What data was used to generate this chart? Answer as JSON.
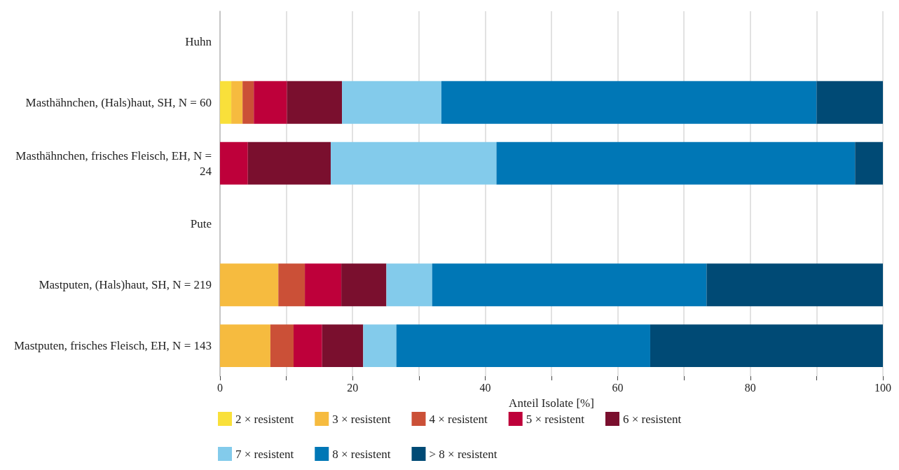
{
  "chart_data": {
    "type": "bar",
    "orientation": "horizontal",
    "stacked": true,
    "xlabel": "Anteil Isolate [%]",
    "categories": [
      "Huhn",
      "Masthähnchen, (Hals)haut, SH, N = 60",
      "Masthähnchen, frisches Fleisch, EH, N = 24",
      "Pute",
      "Mastputen, (Hals)haut, SH, N = 219",
      "Mastputen, frisches Fleisch, EH, N = 143"
    ],
    "series": [
      {
        "name": "2 × resistent",
        "color": "#f9e03a",
        "values": [
          null,
          1.7,
          null,
          null,
          null,
          null
        ]
      },
      {
        "name": "3 × resistent",
        "color": "#f6bb3f",
        "values": [
          null,
          1.7,
          null,
          null,
          8.8,
          7.6
        ]
      },
      {
        "name": "4 × resistent",
        "color": "#cb5037",
        "values": [
          null,
          1.7,
          null,
          null,
          4.0,
          3.5
        ]
      },
      {
        "name": "5 × resistent",
        "color": "#be003a",
        "values": [
          null,
          5.0,
          4.2,
          null,
          5.5,
          4.3
        ]
      },
      {
        "name": "6 × resistent",
        "color": "#7a0f2e",
        "values": [
          null,
          8.3,
          12.5,
          null,
          6.8,
          6.2
        ]
      },
      {
        "name": "7 × resistent",
        "color": "#83cbeb",
        "values": [
          null,
          15.0,
          25.0,
          null,
          6.9,
          5.0
        ]
      },
      {
        "name": "8 × resistent",
        "color": "#0077b6",
        "values": [
          null,
          56.6,
          54.1,
          null,
          41.4,
          38.3
        ]
      },
      {
        "name": "> 8 × resistent",
        "color": "#004a75",
        "values": [
          null,
          10.0,
          4.2,
          null,
          26.6,
          35.1
        ]
      }
    ],
    "xlim": [
      0,
      100
    ],
    "xticks": [
      0,
      {
        "value": 10,
        "label": null
      },
      20,
      {
        "value": 30,
        "label": null
      },
      40,
      {
        "value": 50,
        "label": null
      },
      60,
      {
        "value": 70,
        "label": null
      },
      80,
      {
        "value": 90,
        "label": null
      },
      100
    ],
    "grid": "x",
    "legend": "bottom"
  }
}
